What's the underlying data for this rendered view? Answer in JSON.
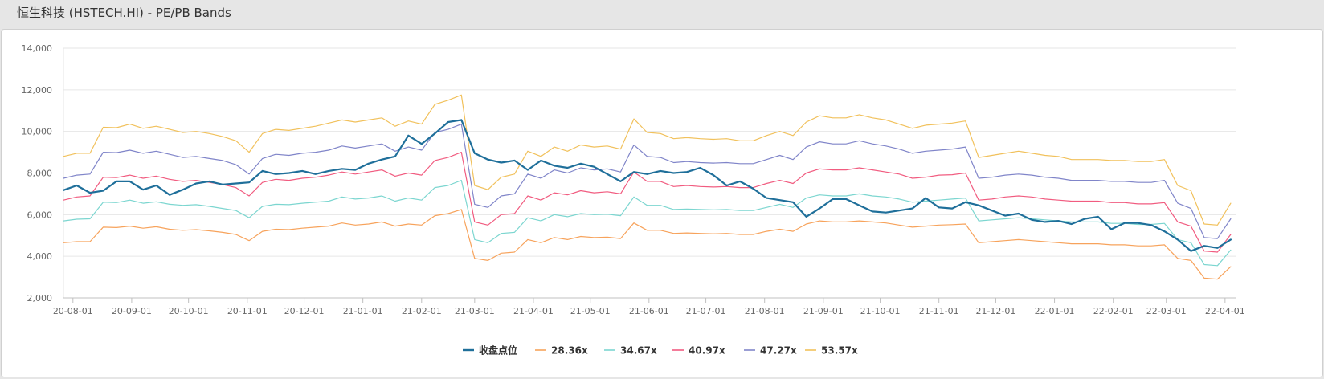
{
  "window": {
    "title": "恒生科技 (HSTECH.HI) - PE/PB Bands"
  },
  "chart_data": {
    "type": "line",
    "title": "",
    "xlabel": "",
    "ylabel": "",
    "ylim": [
      2000,
      14000
    ],
    "yticks": [
      2000,
      4000,
      6000,
      8000,
      10000,
      12000,
      14000
    ],
    "ytick_labels": [
      "2,000",
      "4,000",
      "6,000",
      "8,000",
      "10,000",
      "12,000",
      "14,000"
    ],
    "xlim": [
      "2020-07-27",
      "2022-04-07"
    ],
    "xticks": [
      "2020-08-01",
      "2020-09-01",
      "2020-10-01",
      "2020-11-01",
      "2020-12-01",
      "2021-01-01",
      "2021-02-01",
      "2021-03-01",
      "2021-04-01",
      "2021-05-01",
      "2021-06-01",
      "2021-07-01",
      "2021-08-01",
      "2021-09-01",
      "2021-10-01",
      "2021-11-01",
      "2021-12-01",
      "2022-01-01",
      "2022-02-01",
      "2022-03-01",
      "2022-04-01"
    ],
    "xtick_labels": [
      "20-08-01",
      "20-09-01",
      "20-10-01",
      "20-11-01",
      "20-12-01",
      "21-01-01",
      "21-02-01",
      "21-03-01",
      "21-04-01",
      "21-05-01",
      "21-06-01",
      "21-07-01",
      "21-08-01",
      "21-09-01",
      "21-10-01",
      "21-11-01",
      "21-12-01",
      "22-01-01",
      "22-02-01",
      "22-03-01",
      "22-04-01"
    ],
    "grid": true,
    "legend_position": "bottom-center",
    "x": [
      "2020-07-27",
      "2020-08-03",
      "2020-08-10",
      "2020-08-17",
      "2020-08-24",
      "2020-08-31",
      "2020-09-07",
      "2020-09-14",
      "2020-09-21",
      "2020-09-28",
      "2020-10-05",
      "2020-10-12",
      "2020-10-19",
      "2020-10-26",
      "2020-11-02",
      "2020-11-09",
      "2020-11-16",
      "2020-11-23",
      "2020-11-30",
      "2020-12-07",
      "2020-12-14",
      "2020-12-21",
      "2020-12-28",
      "2021-01-04",
      "2021-01-11",
      "2021-01-18",
      "2021-01-25",
      "2021-02-01",
      "2021-02-08",
      "2021-02-15",
      "2021-02-22",
      "2021-03-01",
      "2021-03-08",
      "2021-03-15",
      "2021-03-22",
      "2021-03-29",
      "2021-04-05",
      "2021-04-12",
      "2021-04-19",
      "2021-04-26",
      "2021-05-03",
      "2021-05-10",
      "2021-05-17",
      "2021-05-24",
      "2021-05-31",
      "2021-06-07",
      "2021-06-14",
      "2021-06-21",
      "2021-06-28",
      "2021-07-05",
      "2021-07-12",
      "2021-07-19",
      "2021-07-26",
      "2021-08-02",
      "2021-08-09",
      "2021-08-16",
      "2021-08-23",
      "2021-08-30",
      "2021-09-06",
      "2021-09-13",
      "2021-09-20",
      "2021-09-27",
      "2021-10-04",
      "2021-10-11",
      "2021-10-18",
      "2021-10-25",
      "2021-11-01",
      "2021-11-08",
      "2021-11-15",
      "2021-11-22",
      "2021-11-29",
      "2021-12-06",
      "2021-12-13",
      "2021-12-20",
      "2021-12-27",
      "2022-01-03",
      "2022-01-10",
      "2022-01-17",
      "2022-01-24",
      "2022-01-31",
      "2022-02-07",
      "2022-02-14",
      "2022-02-21",
      "2022-02-28",
      "2022-03-07",
      "2022-03-14",
      "2022-03-21",
      "2022-03-28",
      "2022-04-04"
    ],
    "series": [
      {
        "name": "收盘点位",
        "color": "#1f6f9a",
        "width": 2.2,
        "values": [
          7180,
          7400,
          7050,
          7150,
          7600,
          7600,
          7200,
          7400,
          6950,
          7200,
          7500,
          7600,
          7450,
          7500,
          7550,
          8100,
          7950,
          8000,
          8100,
          7950,
          8100,
          8200,
          8150,
          8450,
          8650,
          8800,
          9800,
          9400,
          9900,
          10450,
          10550,
          8950,
          8650,
          8500,
          8600,
          8150,
          8600,
          8350,
          8250,
          8450,
          8300,
          7950,
          7600,
          8050,
          7950,
          8100,
          8000,
          8050,
          8250,
          7900,
          7400,
          7600,
          7250,
          6800,
          6700,
          6600,
          5900,
          6300,
          6750,
          6750,
          6450,
          6150,
          6100,
          6200,
          6300,
          6800,
          6350,
          6300,
          6600,
          6450,
          6200,
          5950,
          6050,
          5750,
          5650,
          5700,
          5550,
          5800,
          5900,
          5300,
          5600,
          5600,
          5500,
          5200,
          4800,
          4250,
          4500,
          4400,
          4800
        ]
      },
      {
        "name": "28.36x",
        "color": "#f7a35c",
        "width": 1.2,
        "values": [
          4650,
          4700,
          4700,
          5400,
          5380,
          5450,
          5350,
          5420,
          5300,
          5250,
          5280,
          5220,
          5150,
          5050,
          4750,
          5200,
          5300,
          5280,
          5350,
          5400,
          5450,
          5600,
          5500,
          5550,
          5650,
          5450,
          5550,
          5500,
          5950,
          6050,
          6250,
          3900,
          3800,
          4150,
          4200,
          4800,
          4650,
          4900,
          4800,
          4950,
          4900,
          4920,
          4850,
          5600,
          5250,
          5250,
          5100,
          5120,
          5100,
          5080,
          5100,
          5050,
          5050,
          5200,
          5300,
          5200,
          5550,
          5700,
          5650,
          5650,
          5700,
          5650,
          5600,
          5500,
          5400,
          5450,
          5500,
          5520,
          5550,
          4650,
          4700,
          4750,
          4800,
          4750,
          4700,
          4650,
          4600,
          4600,
          4600,
          4550,
          4550,
          4500,
          4500,
          4550,
          3900,
          3800,
          2950,
          2900,
          3500
        ]
      },
      {
        "name": "34.67x",
        "color": "#7cd6d0",
        "width": 1.2,
        "values": [
          5700,
          5780,
          5800,
          6600,
          6580,
          6700,
          6550,
          6620,
          6500,
          6450,
          6480,
          6400,
          6300,
          6200,
          5850,
          6400,
          6500,
          6480,
          6550,
          6600,
          6650,
          6850,
          6750,
          6800,
          6900,
          6650,
          6800,
          6700,
          7300,
          7400,
          7650,
          4800,
          4650,
          5100,
          5150,
          5850,
          5700,
          6000,
          5900,
          6050,
          6000,
          6020,
          5950,
          6850,
          6450,
          6450,
          6250,
          6270,
          6250,
          6230,
          6250,
          6200,
          6200,
          6350,
          6500,
          6350,
          6800,
          6950,
          6900,
          6900,
          7000,
          6900,
          6850,
          6750,
          6600,
          6650,
          6700,
          6750,
          6800,
          5700,
          5750,
          5800,
          5850,
          5800,
          5750,
          5700,
          5650,
          5650,
          5650,
          5580,
          5580,
          5530,
          5530,
          5580,
          4800,
          4650,
          3600,
          3550,
          4300
        ]
      },
      {
        "name": "40.97x",
        "color": "#f15c80",
        "width": 1.2,
        "values": [
          6700,
          6850,
          6900,
          7800,
          7780,
          7900,
          7750,
          7850,
          7700,
          7600,
          7650,
          7550,
          7450,
          7300,
          6900,
          7550,
          7700,
          7650,
          7750,
          7800,
          7900,
          8050,
          7950,
          8050,
          8150,
          7850,
          8000,
          7900,
          8600,
          8750,
          9000,
          5650,
          5500,
          6000,
          6050,
          6900,
          6700,
          7050,
          6950,
          7150,
          7050,
          7100,
          7000,
          8050,
          7600,
          7600,
          7350,
          7400,
          7350,
          7330,
          7350,
          7300,
          7300,
          7500,
          7650,
          7500,
          8000,
          8200,
          8150,
          8150,
          8250,
          8150,
          8050,
          7950,
          7750,
          7800,
          7900,
          7920,
          8000,
          6700,
          6750,
          6850,
          6900,
          6850,
          6750,
          6700,
          6650,
          6650,
          6650,
          6580,
          6580,
          6520,
          6520,
          6580,
          5650,
          5450,
          4250,
          4200,
          5050
        ]
      },
      {
        "name": "47.27x",
        "color": "#8085c9",
        "width": 1.2,
        "values": [
          7750,
          7900,
          7950,
          9000,
          8980,
          9100,
          8950,
          9050,
          8900,
          8750,
          8800,
          8700,
          8600,
          8400,
          7950,
          8700,
          8900,
          8850,
          8950,
          9000,
          9100,
          9300,
          9200,
          9300,
          9400,
          9050,
          9250,
          9100,
          9950,
          10100,
          10350,
          6500,
          6350,
          6900,
          7000,
          7950,
          7750,
          8150,
          8000,
          8250,
          8150,
          8200,
          8050,
          9350,
          8800,
          8750,
          8500,
          8550,
          8500,
          8480,
          8500,
          8450,
          8450,
          8650,
          8850,
          8650,
          9250,
          9500,
          9400,
          9400,
          9550,
          9400,
          9300,
          9150,
          8950,
          9050,
          9100,
          9150,
          9250,
          7750,
          7800,
          7900,
          7950,
          7900,
          7800,
          7750,
          7650,
          7650,
          7650,
          7600,
          7600,
          7550,
          7550,
          7650,
          6550,
          6300,
          4900,
          4850,
          5800
        ]
      },
      {
        "name": "53.57x",
        "color": "#f1c15c",
        "width": 1.2,
        "values": [
          8800,
          8950,
          8950,
          10200,
          10180,
          10350,
          10150,
          10250,
          10100,
          9950,
          10000,
          9900,
          9750,
          9550,
          9000,
          9900,
          10100,
          10050,
          10150,
          10250,
          10400,
          10550,
          10450,
          10550,
          10650,
          10250,
          10500,
          10350,
          11300,
          11500,
          11750,
          7400,
          7200,
          7800,
          7950,
          9050,
          8800,
          9250,
          9050,
          9350,
          9250,
          9300,
          9150,
          10600,
          9950,
          9900,
          9650,
          9700,
          9650,
          9620,
          9650,
          9550,
          9550,
          9800,
          10000,
          9800,
          10450,
          10750,
          10650,
          10650,
          10800,
          10650,
          10550,
          10350,
          10150,
          10300,
          10350,
          10400,
          10500,
          8750,
          8850,
          8950,
          9050,
          8950,
          8850,
          8800,
          8650,
          8650,
          8650,
          8600,
          8600,
          8550,
          8550,
          8650,
          7400,
          7150,
          5550,
          5500,
          6550
        ]
      }
    ]
  }
}
